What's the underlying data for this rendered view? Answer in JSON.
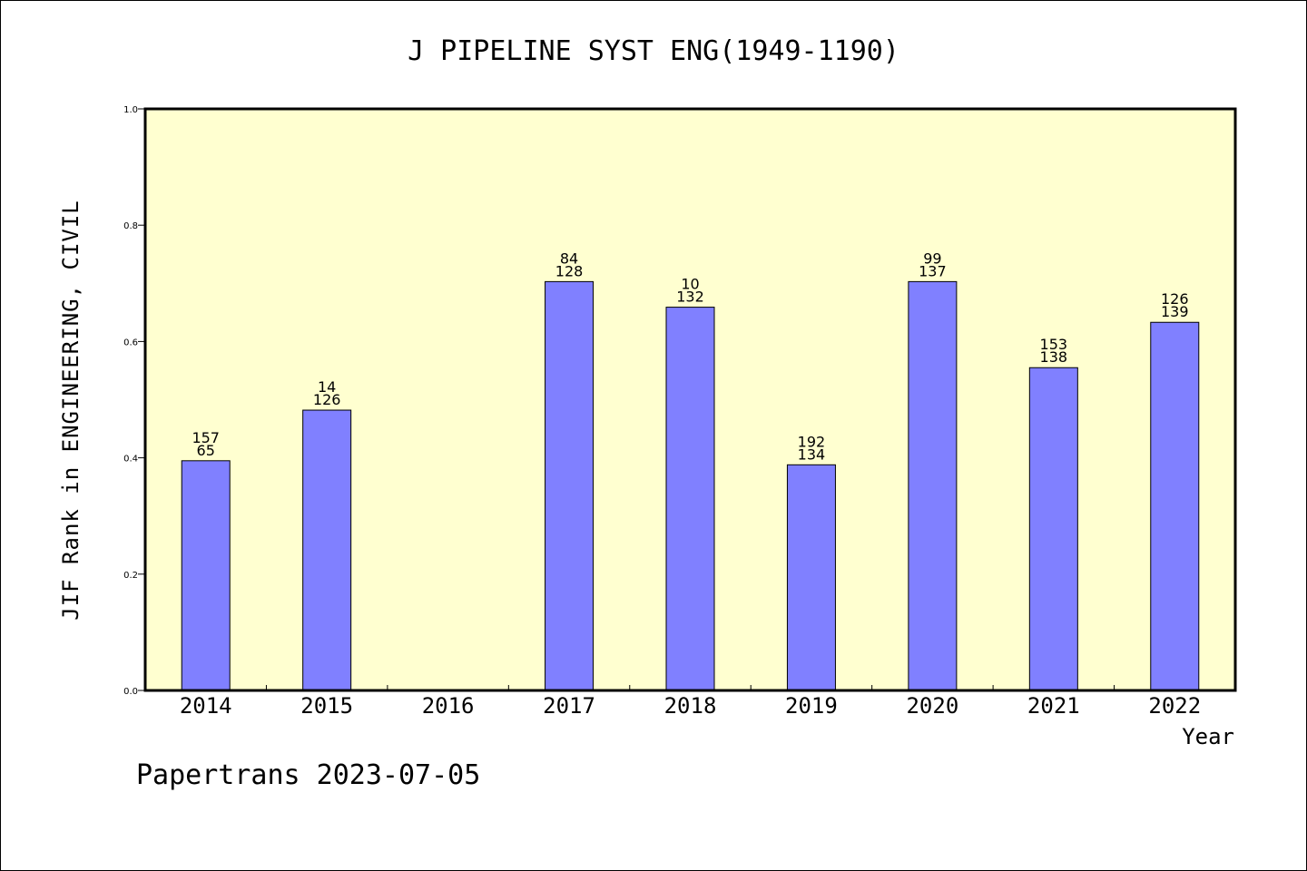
{
  "chart_data": {
    "type": "bar",
    "title": "J PIPELINE SYST ENG(1949-1190)",
    "ylabel": "JIF Rank in ENGINEERING, CIVIL",
    "xlabel": "Year",
    "ylim": [
      0.0,
      1.0
    ],
    "yticks": [
      "0.0",
      "0.2",
      "0.4",
      "0.6",
      "0.8",
      "1.0"
    ],
    "grid": false,
    "categories": [
      "2014",
      "2015",
      "2016",
      "2017",
      "2018",
      "2019",
      "2020",
      "2021",
      "2022"
    ],
    "values": [
      0.395,
      0.482,
      null,
      0.703,
      0.659,
      0.388,
      0.703,
      0.555,
      0.633
    ],
    "rank_labels": [
      "157",
      "14",
      "",
      "84",
      "10",
      "192",
      "99",
      "153",
      "126"
    ],
    "total_labels": [
      "65",
      "126",
      "",
      "128",
      "132",
      "134",
      "137",
      "138",
      "139"
    ],
    "colors": {
      "bar_fill": "#8080ff",
      "plot_background": "#ffffd0",
      "axis": "#000000"
    }
  },
  "footer": "Papertrans 2023-07-05"
}
